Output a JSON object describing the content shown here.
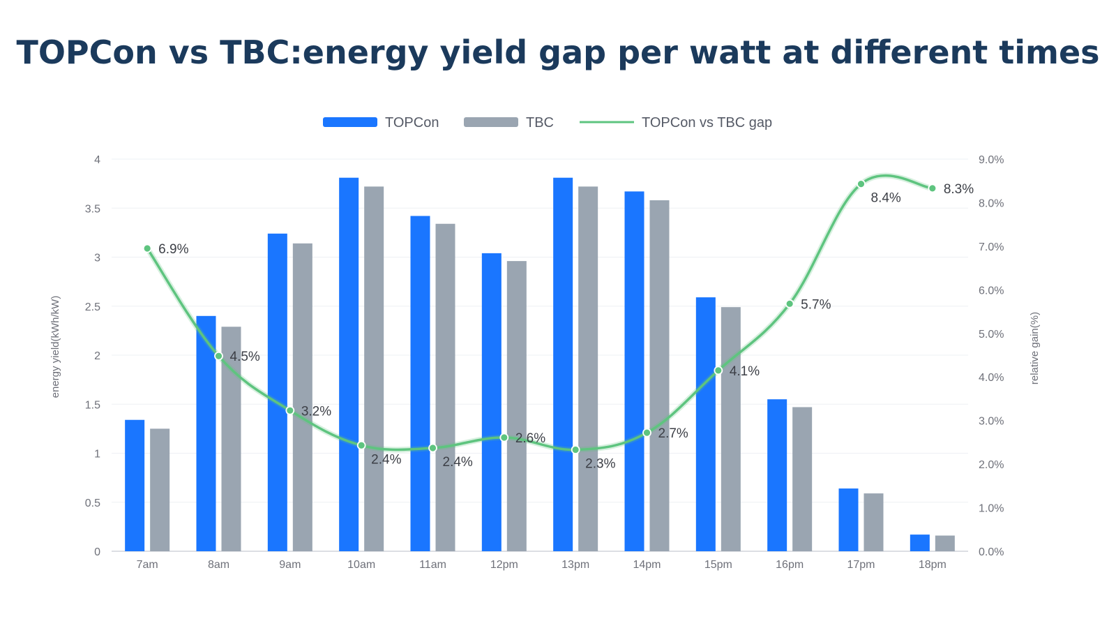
{
  "colors": {
    "title": "#1b3a5c",
    "series_topcon": "#1a76ff",
    "series_tbc": "#9aa5b1",
    "series_gap": "#5ec47f",
    "grid": "#eef0f4",
    "axis": "#d0d4da"
  },
  "chart_data": {
    "type": "bar",
    "title": "TOPCon vs TBC:energy yield gap per watt at different times",
    "categories": [
      "7am",
      "8am",
      "9am",
      "10am",
      "11am",
      "12pm",
      "13pm",
      "14pm",
      "15pm",
      "16pm",
      "17pm",
      "18pm"
    ],
    "series": [
      {
        "name": "TOPCon",
        "type": "bar",
        "axis": "left",
        "values": [
          1.34,
          2.4,
          3.24,
          3.81,
          3.42,
          3.04,
          3.81,
          3.67,
          2.59,
          1.55,
          0.64,
          0.17
        ]
      },
      {
        "name": "TBC",
        "type": "bar",
        "axis": "left",
        "values": [
          1.25,
          2.29,
          3.14,
          3.72,
          3.34,
          2.96,
          3.72,
          3.58,
          2.49,
          1.47,
          0.59,
          0.16
        ]
      },
      {
        "name": "TOPCon vs TBC gap",
        "type": "line",
        "axis": "right",
        "values": [
          6.95,
          4.48,
          3.23,
          2.43,
          2.37,
          2.61,
          2.33,
          2.72,
          4.15,
          5.68,
          8.43,
          8.33
        ],
        "labels": [
          "6.9%",
          "4.5%",
          "3.2%",
          "2.4%",
          "2.4%",
          "2.6%",
          "2.3%",
          "2.7%",
          "4.1%",
          "5.7%",
          "8.4%",
          "8.3%"
        ]
      }
    ],
    "ylabel": "energy yield(kWh/kW)",
    "ylim": [
      0,
      4
    ],
    "yticks": [
      "0",
      "0.5",
      "1",
      "1.5",
      "2",
      "2.5",
      "3",
      "3.5",
      "4"
    ],
    "y2label": "relative gain(%)",
    "y2lim": [
      0,
      9
    ],
    "y2ticks": [
      "0.0%",
      "1.0%",
      "2.0%",
      "3.0%",
      "4.0%",
      "5.0%",
      "6.0%",
      "7.0%",
      "8.0%",
      "9.0%"
    ],
    "legend": {
      "position": "top-center",
      "items": [
        "TOPCon",
        "TBC",
        "TOPCon vs TBC gap"
      ]
    },
    "grid": true
  }
}
